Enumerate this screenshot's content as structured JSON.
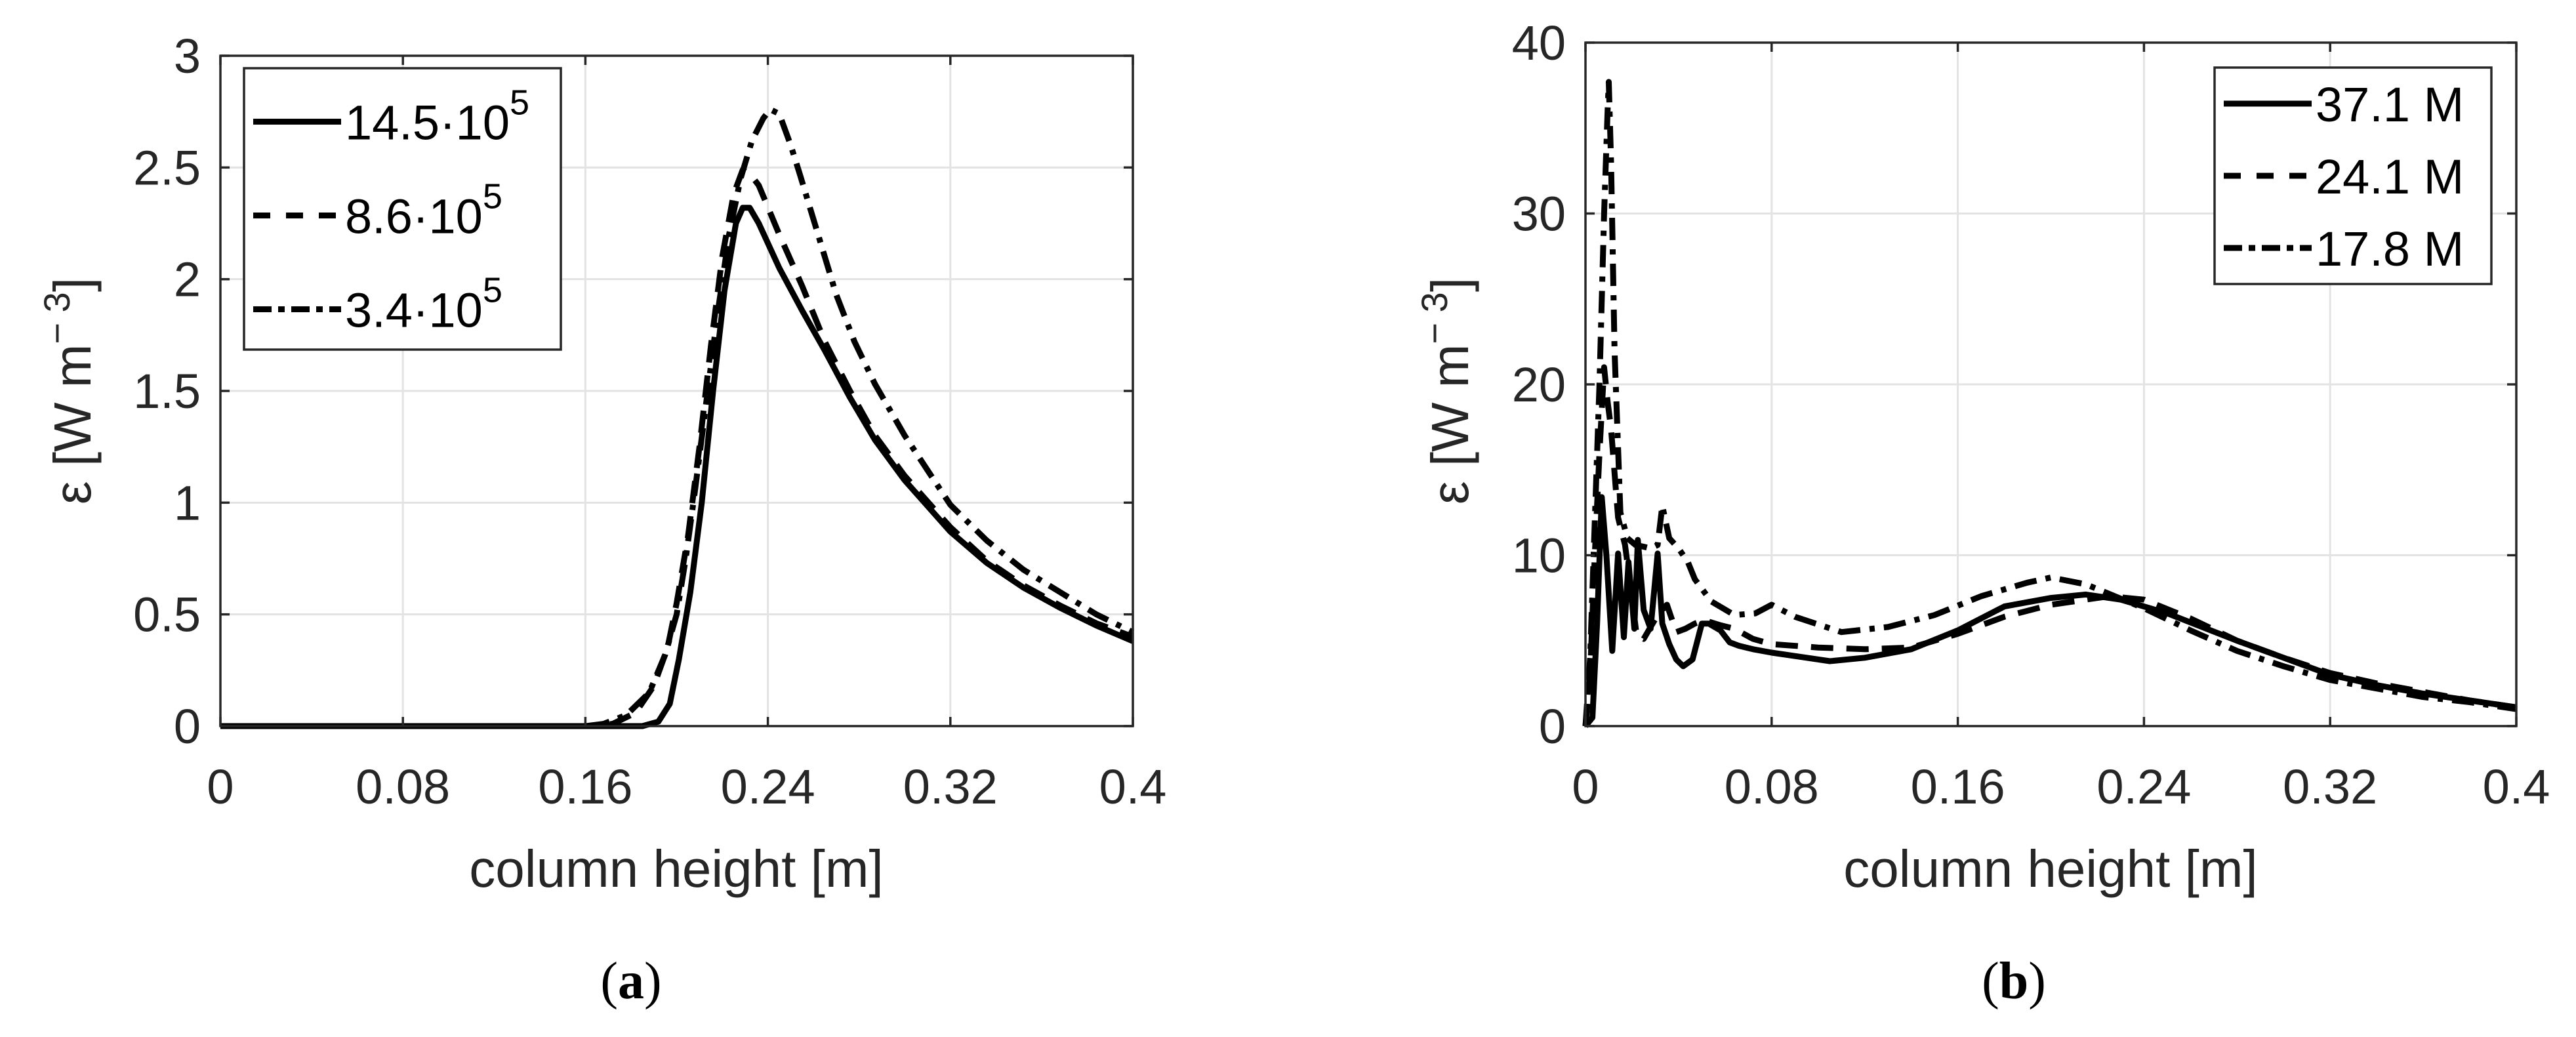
{
  "figure": {
    "panels": [
      {
        "id": "a",
        "caption_open": "(",
        "caption_letter": "a",
        "caption_close": ")",
        "ylabel_main": "ε [W m",
        "ylabel_sup": "− 3",
        "ylabel_close": "]",
        "xlabel": "column height [m]",
        "legend_position": "upper-left"
      },
      {
        "id": "b",
        "caption_open": "(",
        "caption_letter": "b",
        "caption_close": ")",
        "ylabel_main": "ε [W m",
        "ylabel_sup": "− 3",
        "ylabel_close": "]",
        "xlabel": "column height [m]",
        "legend_position": "upper-right"
      }
    ]
  },
  "chart_data": [
    {
      "type": "line",
      "panel": "a",
      "title": "",
      "xlabel": "column height [m]",
      "ylabel": "ε [W m^-3]",
      "xlim": [
        0,
        0.4
      ],
      "ylim": [
        0,
        3
      ],
      "xticks": [
        "0",
        "0.08",
        "0.16",
        "0.24",
        "0.32",
        "0.4"
      ],
      "xtick_values": [
        0,
        0.08,
        0.16,
        0.24,
        0.32,
        0.4
      ],
      "yticks": [
        "0",
        "0.5",
        "1",
        "1.5",
        "2",
        "2.5",
        "3"
      ],
      "ytick_values": [
        0,
        0.5,
        1,
        1.5,
        2,
        2.5,
        3
      ],
      "grid": true,
      "legend_position": "upper-left",
      "series": [
        {
          "name": "14.5·10^5",
          "legend_base": "14.5·10",
          "legend_exp": "5",
          "style": "solid",
          "x": [
            0,
            0.08,
            0.16,
            0.185,
            0.192,
            0.197,
            0.201,
            0.206,
            0.211,
            0.216,
            0.221,
            0.226,
            0.229,
            0.232,
            0.236,
            0.245,
            0.255,
            0.265,
            0.276,
            0.287,
            0.3,
            0.32,
            0.336,
            0.352,
            0.368,
            0.384,
            0.4
          ],
          "y": [
            0,
            0,
            0,
            0.0,
            0.02,
            0.1,
            0.3,
            0.6,
            1.0,
            1.5,
            1.95,
            2.25,
            2.32,
            2.32,
            2.25,
            2.05,
            1.86,
            1.68,
            1.47,
            1.28,
            1.1,
            0.87,
            0.73,
            0.62,
            0.53,
            0.45,
            0.38
          ]
        },
        {
          "name": "8.6·10^5",
          "legend_base": "8.6·10",
          "legend_exp": "5",
          "style": "dashed",
          "x": [
            0,
            0.08,
            0.16,
            0.172,
            0.182,
            0.19,
            0.196,
            0.2,
            0.205,
            0.21,
            0.215,
            0.22,
            0.225,
            0.229,
            0.233,
            0.236,
            0.245,
            0.255,
            0.265,
            0.276,
            0.287,
            0.3,
            0.32,
            0.336,
            0.352,
            0.368,
            0.384,
            0.4
          ],
          "y": [
            0,
            0,
            0,
            0.01,
            0.06,
            0.18,
            0.35,
            0.55,
            0.85,
            1.25,
            1.7,
            2.1,
            2.38,
            2.49,
            2.46,
            2.42,
            2.2,
            1.97,
            1.72,
            1.5,
            1.3,
            1.12,
            0.89,
            0.74,
            0.63,
            0.54,
            0.46,
            0.4
          ]
        },
        {
          "name": "3.4·10^5",
          "legend_base": "3.4·10",
          "legend_exp": "5",
          "style": "dashdot",
          "x": [
            0,
            0.08,
            0.16,
            0.168,
            0.178,
            0.188,
            0.195,
            0.2,
            0.204,
            0.208,
            0.213,
            0.218,
            0.223,
            0.228,
            0.233,
            0.238,
            0.241,
            0.245,
            0.25,
            0.254,
            0.262,
            0.27,
            0.278,
            0.287,
            0.3,
            0.32,
            0.336,
            0.352,
            0.368,
            0.384,
            0.4
          ],
          "y": [
            0,
            0,
            0,
            0.01,
            0.05,
            0.15,
            0.32,
            0.5,
            0.75,
            1.05,
            1.45,
            1.85,
            2.2,
            2.45,
            2.62,
            2.72,
            2.76,
            2.74,
            2.6,
            2.47,
            2.2,
            1.93,
            1.72,
            1.53,
            1.3,
            0.99,
            0.83,
            0.7,
            0.6,
            0.5,
            0.42
          ]
        }
      ]
    },
    {
      "type": "line",
      "panel": "b",
      "title": "",
      "xlabel": "column height [m]",
      "ylabel": "ε [W m^-3]",
      "xlim": [
        0,
        0.4
      ],
      "ylim": [
        0,
        40
      ],
      "xticks": [
        "0",
        "0.08",
        "0.16",
        "0.24",
        "0.32",
        "0.4"
      ],
      "xtick_values": [
        0,
        0.08,
        0.16,
        0.24,
        0.32,
        0.4
      ],
      "yticks": [
        "0",
        "10",
        "20",
        "30",
        "40"
      ],
      "ytick_values": [
        0,
        10,
        20,
        30,
        40
      ],
      "grid": true,
      "legend_position": "upper-right",
      "series": [
        {
          "name": "37.1 M",
          "legend_base": "37.1 M",
          "legend_exp": "",
          "style": "solid",
          "x": [
            0,
            0.003,
            0.005,
            0.007,
            0.009,
            0.0115,
            0.014,
            0.0165,
            0.0185,
            0.021,
            0.0225,
            0.025,
            0.028,
            0.031,
            0.033,
            0.036,
            0.039,
            0.042,
            0.046,
            0.05,
            0.053,
            0.058,
            0.062,
            0.066,
            0.072,
            0.08,
            0.09,
            0.105,
            0.12,
            0.14,
            0.16,
            0.18,
            0.2,
            0.215,
            0.23,
            0.25,
            0.28,
            0.3,
            0.32,
            0.34,
            0.36,
            0.38,
            0.4
          ],
          "y": [
            0,
            0.5,
            6,
            13.4,
            10,
            4.4,
            10.1,
            5.2,
            9.6,
            5.7,
            10.9,
            6.8,
            5.7,
            10.1,
            6.0,
            4.8,
            3.9,
            3.5,
            3.9,
            6.0,
            6.0,
            5.6,
            4.9,
            4.7,
            4.5,
            4.3,
            4.1,
            3.8,
            4.0,
            4.5,
            5.6,
            7.0,
            7.5,
            7.7,
            7.4,
            6.6,
            5.0,
            4.0,
            3.0,
            2.4,
            1.9,
            1.5,
            1.1
          ]
        },
        {
          "name": "24.1 M",
          "legend_base": "24.1 M",
          "legend_exp": "",
          "style": "dashed",
          "x": [
            0,
            0.002,
            0.004,
            0.006,
            0.008,
            0.0095,
            0.011,
            0.014,
            0.017,
            0.02,
            0.022,
            0.025,
            0.028,
            0.031,
            0.035,
            0.039,
            0.043,
            0.047,
            0.051,
            0.058,
            0.064,
            0.072,
            0.08,
            0.1,
            0.12,
            0.14,
            0.16,
            0.18,
            0.2,
            0.225,
            0.24,
            0.26,
            0.28,
            0.3,
            0.32,
            0.34,
            0.36,
            0.38,
            0.4
          ],
          "y": [
            0,
            3,
            10,
            16,
            21,
            19,
            17.4,
            12.2,
            10.6,
            7.5,
            5.3,
            5.1,
            5.8,
            6.5,
            7.1,
            5.5,
            5.7,
            6.0,
            6.2,
            5.9,
            5.7,
            5.1,
            4.8,
            4.6,
            4.5,
            4.6,
            5.4,
            6.4,
            7.1,
            7.6,
            7.4,
            6.3,
            5.0,
            4.0,
            3.1,
            2.5,
            2.0,
            1.5,
            1.1
          ]
        },
        {
          "name": "17.8 M",
          "legend_base": "17.8 M",
          "legend_exp": "",
          "style": "dashdot",
          "x": [
            0,
            0.002,
            0.004,
            0.006,
            0.008,
            0.0095,
            0.01,
            0.011,
            0.0125,
            0.015,
            0.018,
            0.0215,
            0.025,
            0.028,
            0.031,
            0.033,
            0.036,
            0.04,
            0.044,
            0.047,
            0.054,
            0.064,
            0.073,
            0.08,
            0.09,
            0.11,
            0.13,
            0.15,
            0.17,
            0.19,
            0.2,
            0.215,
            0.24,
            0.26,
            0.28,
            0.3,
            0.32,
            0.34,
            0.36,
            0.38,
            0.4
          ],
          "y": [
            0,
            4,
            12,
            20,
            30,
            36,
            37.7,
            33,
            22,
            12.5,
            11.0,
            10.6,
            10.5,
            10.4,
            10.6,
            12.9,
            11.0,
            10.4,
            9.6,
            8.6,
            7.3,
            6.5,
            6.6,
            7.1,
            6.4,
            5.5,
            5.8,
            6.5,
            7.6,
            8.4,
            8.7,
            8.3,
            6.9,
            5.6,
            4.4,
            3.5,
            2.7,
            2.2,
            1.7,
            1.4,
            1.0
          ]
        }
      ]
    }
  ]
}
